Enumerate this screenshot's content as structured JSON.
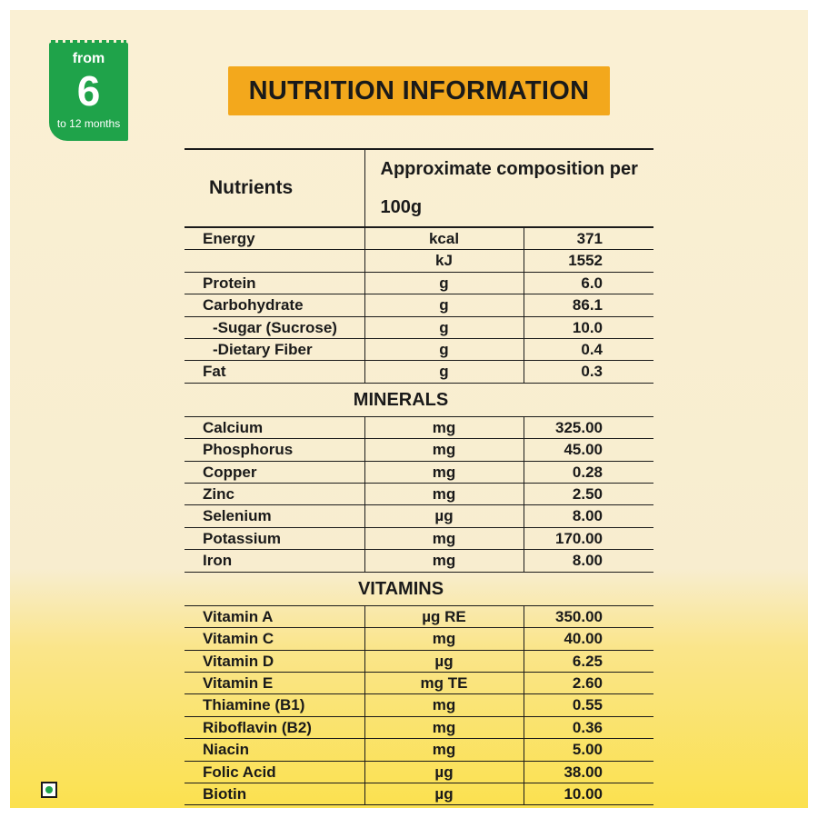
{
  "badge": {
    "from": "from",
    "number": "6",
    "range": "to 12 months"
  },
  "title": "NUTRITION INFORMATION",
  "table": {
    "header": {
      "nutrients": "Nutrients",
      "composition": "Approximate composition per 100g"
    },
    "rows": [
      {
        "name": "Energy",
        "unit": "kcal",
        "value": "371"
      },
      {
        "name": "",
        "unit": "kJ",
        "value": "1552"
      },
      {
        "name": "Protein",
        "unit": "g",
        "value": "6.0"
      },
      {
        "name": "Carbohydrate",
        "unit": "g",
        "value": "86.1"
      },
      {
        "name": "-Sugar (Sucrose)",
        "unit": "g",
        "value": "10.0"
      },
      {
        "name": "-Dietary Fiber",
        "unit": "g",
        "value": "0.4"
      },
      {
        "name": "Fat",
        "unit": "g",
        "value": "0.3"
      }
    ],
    "minerals_title": "MINERALS",
    "minerals": [
      {
        "name": "Calcium",
        "unit": "mg",
        "value": "325.00"
      },
      {
        "name": "Phosphorus",
        "unit": "mg",
        "value": "45.00"
      },
      {
        "name": "Copper",
        "unit": "mg",
        "value": "0.28"
      },
      {
        "name": "Zinc",
        "unit": "mg",
        "value": "2.50"
      },
      {
        "name": "Selenium",
        "unit": "µg",
        "value": "8.00"
      },
      {
        "name": "Potassium",
        "unit": "mg",
        "value": "170.00"
      },
      {
        "name": "Iron",
        "unit": "mg",
        "value": "8.00"
      }
    ],
    "vitamins_title": "VITAMINS",
    "vitamins": [
      {
        "name": "Vitamin A",
        "unit": "µg RE",
        "value": "350.00"
      },
      {
        "name": "Vitamin C",
        "unit": "mg",
        "value": "40.00"
      },
      {
        "name": "Vitamin D",
        "unit": "µg",
        "value": "6.25"
      },
      {
        "name": "Vitamin E",
        "unit": "mg TE",
        "value": "2.60"
      },
      {
        "name": "Thiamine (B1)",
        "unit": "mg",
        "value": "0.55"
      },
      {
        "name": "Riboflavin (B2)",
        "unit": "mg",
        "value": "0.36"
      },
      {
        "name": "Niacin",
        "unit": "mg",
        "value": "5.00"
      },
      {
        "name": "Folic Acid",
        "unit": "µg",
        "value": "38.00"
      },
      {
        "name": "Biotin",
        "unit": "µg",
        "value": "10.00"
      }
    ]
  },
  "colors": {
    "badge_green": "#1fa34a",
    "title_orange": "#f3a81c",
    "text": "#1a1a1a"
  },
  "icons": {
    "veg_mark": "veg-symbol-icon"
  }
}
